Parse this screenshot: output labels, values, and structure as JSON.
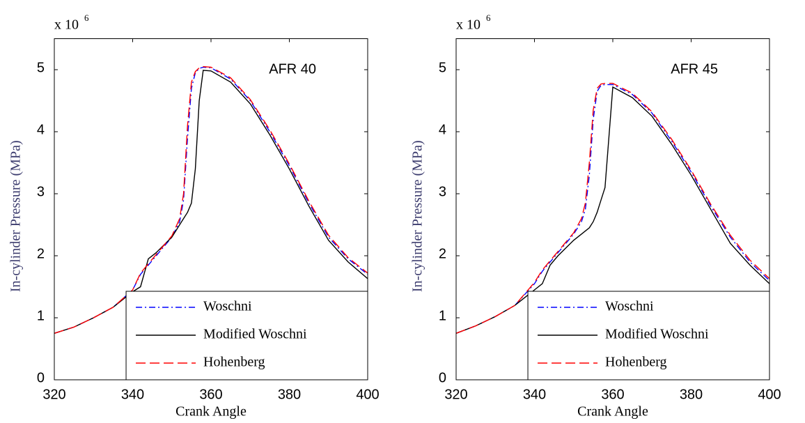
{
  "chart_data": [
    {
      "type": "line",
      "annotation": "AFR 40",
      "multiplier": "x 10",
      "multiplier_exp": "6",
      "xlabel": "Crank Angle",
      "ylabel": "In-cylinder Pressure (MPa)",
      "x": [
        320,
        325,
        330,
        335,
        340,
        342,
        344,
        346,
        350,
        352,
        353,
        354,
        355,
        356,
        357,
        358,
        360,
        365,
        370,
        375,
        380,
        385,
        390,
        395,
        400
      ],
      "series": [
        {
          "name": "Woschni",
          "color": "#0000ff",
          "dash": "dashdot",
          "values": [
            0.75,
            0.85,
            1.0,
            1.17,
            1.45,
            1.7,
            1.85,
            2.0,
            2.3,
            2.55,
            2.9,
            3.9,
            4.7,
            4.95,
            5.02,
            5.04,
            5.03,
            4.85,
            4.5,
            4.0,
            3.45,
            2.85,
            2.3,
            1.95,
            1.7
          ]
        },
        {
          "name": "Modified Woschni",
          "color": "#000000",
          "dash": "solid",
          "values": [
            0.75,
            0.85,
            1.0,
            1.17,
            1.42,
            1.5,
            1.95,
            2.05,
            2.3,
            2.5,
            2.6,
            2.7,
            2.85,
            3.4,
            4.5,
            4.99,
            4.98,
            4.8,
            4.45,
            3.95,
            3.4,
            2.8,
            2.25,
            1.9,
            1.63
          ]
        },
        {
          "name": "Hohenberg",
          "color": "#ff0000",
          "dash": "dashed",
          "values": [
            0.75,
            0.85,
            1.0,
            1.17,
            1.45,
            1.72,
            1.87,
            2.02,
            2.32,
            2.6,
            3.0,
            4.1,
            4.8,
            4.97,
            5.03,
            5.05,
            5.04,
            4.87,
            4.52,
            4.03,
            3.48,
            2.88,
            2.33,
            1.97,
            1.72
          ]
        }
      ],
      "xlim": [
        320,
        400
      ],
      "xticks": [
        320,
        340,
        360,
        380,
        400
      ],
      "ylim": [
        0,
        5.5
      ],
      "yticks": [
        0,
        1,
        2,
        3,
        4,
        5
      ],
      "legend": "lower right"
    },
    {
      "type": "line",
      "annotation": "AFR 45",
      "multiplier": "x 10",
      "multiplier_exp": "6",
      "xlabel": "Crank Angle",
      "ylabel": "In-cylinder Pressure (MPa)",
      "x": [
        320,
        325,
        330,
        335,
        340,
        342,
        344,
        346,
        350,
        352,
        353,
        354,
        355,
        356,
        357,
        358,
        360,
        365,
        370,
        375,
        380,
        385,
        390,
        395,
        400
      ],
      "series": [
        {
          "name": "Woschni",
          "color": "#0000ff",
          "dash": "dashdot",
          "values": [
            0.75,
            0.87,
            1.02,
            1.2,
            1.55,
            1.75,
            1.9,
            2.05,
            2.35,
            2.55,
            2.75,
            3.3,
            4.2,
            4.65,
            4.75,
            4.76,
            4.76,
            4.6,
            4.3,
            3.85,
            3.35,
            2.8,
            2.3,
            1.9,
            1.6
          ]
        },
        {
          "name": "Modified Woschni",
          "color": "#000000",
          "dash": "solid",
          "values": [
            0.75,
            0.87,
            1.02,
            1.2,
            1.45,
            1.55,
            1.85,
            2.0,
            2.25,
            2.35,
            2.4,
            2.45,
            2.55,
            2.7,
            2.9,
            3.1,
            4.72,
            4.55,
            4.25,
            3.8,
            3.3,
            2.75,
            2.2,
            1.85,
            1.55
          ]
        },
        {
          "name": "Hohenberg",
          "color": "#ff0000",
          "dash": "dashed",
          "values": [
            0.75,
            0.87,
            1.02,
            1.2,
            1.57,
            1.77,
            1.92,
            2.07,
            2.37,
            2.6,
            2.85,
            3.5,
            4.35,
            4.7,
            4.77,
            4.78,
            4.78,
            4.62,
            4.32,
            3.88,
            3.38,
            2.83,
            2.33,
            1.93,
            1.63
          ]
        }
      ],
      "xlim": [
        320,
        400
      ],
      "xticks": [
        320,
        340,
        360,
        380,
        400
      ],
      "ylim": [
        0,
        5.5
      ],
      "yticks": [
        0,
        1,
        2,
        3,
        4,
        5
      ],
      "legend": "lower right"
    }
  ]
}
